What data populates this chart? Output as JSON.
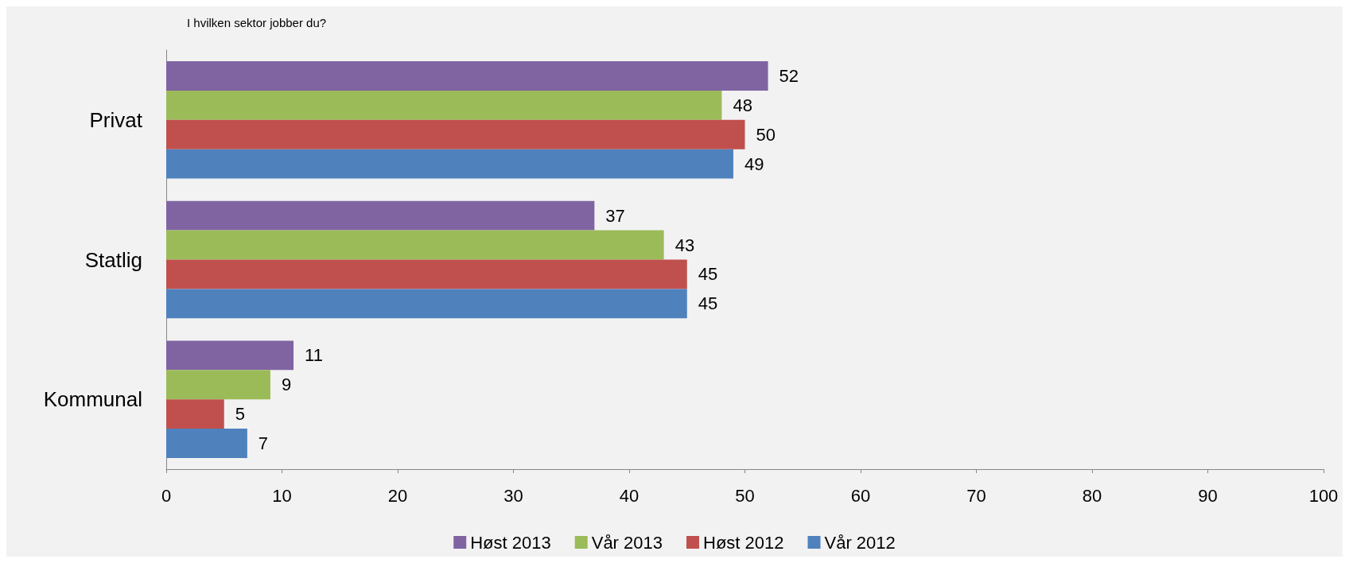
{
  "chart_data": {
    "type": "bar",
    "orientation": "horizontal",
    "title": "I hvilken sektor jobber du?",
    "categories": [
      "Privat",
      "Statlig",
      "Kommunal"
    ],
    "series": [
      {
        "name": "Høst 2013",
        "color": "#8064a2",
        "values": [
          52,
          37,
          11
        ]
      },
      {
        "name": "Vår 2013",
        "color": "#9bbb59",
        "values": [
          48,
          43,
          9
        ]
      },
      {
        "name": "Høst 2012",
        "color": "#c0504d",
        "values": [
          50,
          45,
          5
        ]
      },
      {
        "name": "Vår 2012",
        "color": "#4f81bd",
        "values": [
          49,
          45,
          7
        ]
      }
    ],
    "xlim": [
      0,
      100
    ],
    "xticks": [
      0,
      10,
      20,
      30,
      40,
      50,
      60,
      70,
      80,
      90,
      100
    ],
    "data_labels": true,
    "grid": false,
    "legend": "bottom"
  }
}
